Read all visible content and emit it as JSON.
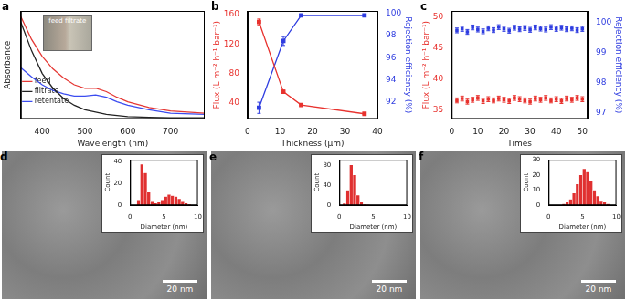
{
  "chart_data": [
    {
      "type": "line",
      "title": "a",
      "x_label": "Wavelength (nm)",
      "y_label": "Absorbance",
      "x": [
        350,
        375,
        400,
        425,
        450,
        475,
        500,
        525,
        550,
        575,
        600,
        650,
        700,
        780
      ],
      "series": [
        {
          "name": "feed",
          "color": "#e53935",
          "line_style": "solid",
          "marker": "none",
          "values": [
            0.9,
            0.7,
            0.55,
            0.44,
            0.36,
            0.3,
            0.27,
            0.27,
            0.24,
            0.19,
            0.15,
            0.1,
            0.07,
            0.05
          ]
        },
        {
          "name": "filtrate",
          "color": "#222222",
          "line_style": "solid",
          "marker": "none",
          "values": [
            0.85,
            0.6,
            0.4,
            0.27,
            0.18,
            0.12,
            0.08,
            0.06,
            0.04,
            0.03,
            0.02,
            0.015,
            0.01,
            0.01
          ]
        },
        {
          "name": "retentate",
          "color": "#3b4cf0",
          "line_style": "solid",
          "marker": "none",
          "values": [
            0.45,
            0.37,
            0.3,
            0.25,
            0.22,
            0.2,
            0.2,
            0.21,
            0.19,
            0.15,
            0.12,
            0.08,
            0.05,
            0.04
          ]
        }
      ],
      "xlim": [
        350,
        780
      ],
      "xticks": [
        400,
        500,
        600,
        700
      ],
      "ylim": [
        0,
        0.95
      ],
      "tick_labels": "x",
      "legend": "upper right",
      "grid": false,
      "annotations": [
        "feed filtrate"
      ]
    },
    {
      "type": "line",
      "title": "b",
      "x_label": "Thickness (μm)",
      "y_label": "Flux (L m⁻² h⁻¹ bar⁻¹)",
      "y2_label": "Rejection efficiency (%)",
      "x": [
        3.5,
        11,
        16.5,
        36
      ],
      "series": [
        {
          "color": "#e8322e",
          "line_style": "solid",
          "marker": "square",
          "values": [
            150,
            55,
            37,
            25
          ],
          "errors": [
            4,
            2,
            1,
            1
          ]
        },
        {
          "color": "#2f3de0",
          "line_style": "solid",
          "marker": "square",
          "axis": "y2",
          "values": [
            91.5,
            97.5,
            99.8,
            99.8
          ],
          "errors": [
            0.5,
            0.4,
            0.1,
            0.1
          ]
        }
      ],
      "xlim": [
        0,
        40
      ],
      "xticks": [
        0,
        10,
        20,
        30,
        40
      ],
      "ylim": [
        18,
        165
      ],
      "yticks": [
        40,
        80,
        120,
        160
      ],
      "y2lim": [
        90.5,
        100.2
      ],
      "y2ticks": [
        92,
        94,
        96,
        98,
        100
      ],
      "grid": false
    },
    {
      "type": "scatter",
      "title": "c",
      "x_label": "Times",
      "y_label": "Flux (L m⁻² h⁻¹ bar⁻¹)",
      "y2_label": "Rejection efficiency (%)",
      "x": [
        2,
        4,
        6,
        8,
        10,
        12,
        14,
        16,
        18,
        20,
        22,
        24,
        26,
        28,
        30,
        32,
        34,
        36,
        38,
        40,
        42,
        44,
        46,
        48,
        50
      ],
      "series": [
        {
          "color": "#e8322e",
          "line_style": "none",
          "marker": "square",
          "values": [
            36.5,
            36.8,
            36.3,
            36.6,
            36.9,
            36.4,
            36.7,
            36.5,
            36.8,
            36.6,
            36.4,
            36.9,
            36.7,
            36.5,
            36.3,
            36.8,
            36.6,
            36.9,
            36.5,
            36.7,
            36.4,
            36.8,
            36.6,
            36.9,
            36.7
          ],
          "errors": [
            0.4,
            0.4,
            0.4,
            0.4,
            0.4,
            0.4,
            0.4,
            0.4,
            0.4,
            0.4,
            0.4,
            0.4,
            0.4,
            0.4,
            0.4,
            0.4,
            0.4,
            0.4,
            0.4,
            0.4,
            0.4,
            0.4,
            0.4,
            0.4,
            0.4
          ]
        },
        {
          "color": "#2f3de0",
          "line_style": "none",
          "marker": "square",
          "axis": "y2",
          "values": [
            99.75,
            99.8,
            99.7,
            99.85,
            99.78,
            99.72,
            99.82,
            99.76,
            99.86,
            99.8,
            99.74,
            99.84,
            99.79,
            99.83,
            99.77,
            99.85,
            99.81,
            99.78,
            99.86,
            99.8,
            99.84,
            99.79,
            99.82,
            99.76,
            99.8
          ],
          "errors": [
            0.08,
            0.08,
            0.08,
            0.08,
            0.08,
            0.08,
            0.08,
            0.08,
            0.08,
            0.08,
            0.08,
            0.08,
            0.08,
            0.08,
            0.08,
            0.08,
            0.08,
            0.08,
            0.08,
            0.08,
            0.08,
            0.08,
            0.08,
            0.08,
            0.08
          ]
        }
      ],
      "xlim": [
        0,
        52
      ],
      "xticks": [
        0,
        10,
        20,
        30,
        40,
        50
      ],
      "ylim": [
        33.5,
        51
      ],
      "yticks": [
        35,
        40,
        45,
        50
      ],
      "y2lim": [
        96.8,
        100.4
      ],
      "y2ticks": [
        97,
        98,
        99,
        100
      ],
      "grid": false
    },
    {
      "type": "histogram",
      "title": "d",
      "x_label": "Diameter (nm)",
      "y_label": "Count",
      "color": "#e03030",
      "bins": [
        1.0,
        1.5,
        2.0,
        2.5,
        3.0,
        3.5,
        4.0,
        4.5,
        5.0,
        5.5,
        6.0,
        6.5,
        7.0,
        7.5,
        8.0,
        8.5,
        9.0
      ],
      "values": [
        5,
        38,
        30,
        12,
        4,
        2,
        3,
        5,
        8,
        10,
        9,
        8,
        6,
        4,
        2,
        1
      ],
      "xlim": [
        0,
        10
      ],
      "xticks": [
        0,
        5,
        10
      ],
      "ylim": [
        0,
        42
      ],
      "yticks": [
        0,
        20,
        40
      ],
      "grid": false,
      "annotations": [
        "20 nm"
      ]
    },
    {
      "type": "histogram",
      "title": "e",
      "x_label": "Diameter (nm)",
      "y_label": "Count",
      "color": "#e03030",
      "bins": [
        0.5,
        1.0,
        1.5,
        2.0,
        2.5,
        3.0,
        3.5,
        4.0,
        4.5,
        5.0
      ],
      "values": [
        4,
        30,
        80,
        60,
        20,
        6,
        2,
        1,
        0
      ],
      "xlim": [
        0,
        10
      ],
      "xticks": [
        0,
        5,
        10
      ],
      "ylim": [
        0,
        90
      ],
      "yticks": [
        0,
        40,
        80
      ],
      "grid": false,
      "annotations": [
        "20 nm"
      ]
    },
    {
      "type": "histogram",
      "title": "f",
      "x_label": "Diameter (nm)",
      "y_label": "Count",
      "color": "#e03030",
      "bins": [
        2.0,
        2.5,
        3.0,
        3.5,
        4.0,
        4.5,
        5.0,
        5.5,
        6.0,
        6.5,
        7.0,
        7.5,
        8.0,
        8.5,
        9.0
      ],
      "values": [
        1,
        2,
        4,
        8,
        14,
        20,
        24,
        22,
        16,
        10,
        6,
        3,
        2,
        1
      ],
      "xlim": [
        0,
        10
      ],
      "xticks": [
        0,
        5,
        10
      ],
      "ylim": [
        0,
        30
      ],
      "yticks": [
        0,
        10,
        20,
        30
      ],
      "grid": false,
      "annotations": [
        "20 nm"
      ]
    }
  ]
}
